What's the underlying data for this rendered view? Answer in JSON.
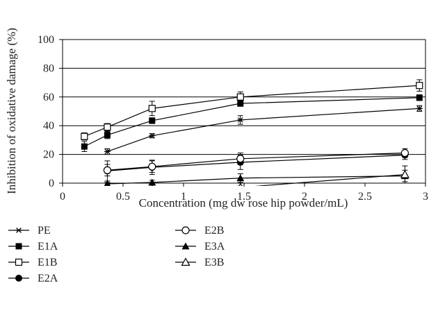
{
  "chart_data": {
    "type": "line",
    "xlabel": "Concentration (mg dw rose hip powder/mL)",
    "ylabel": "Inhibition of oxidative damage (%)",
    "xlim": [
      0,
      3
    ],
    "ylim": [
      0,
      100
    ],
    "x_ticks": [
      "0",
      "0.5",
      "1",
      "1.5",
      "2",
      "2.5",
      "3"
    ],
    "y_ticks": [
      "0",
      "20",
      "40",
      "60",
      "80",
      "100"
    ],
    "grid": "horizontal",
    "legend_position": "bottom",
    "series": [
      {
        "name": "PE",
        "marker": "star",
        "x": [
          0.37,
          0.74,
          1.47,
          2.95
        ],
        "y": [
          22,
          33,
          44,
          52
        ],
        "err": [
          2,
          1.5,
          3,
          2
        ]
      },
      {
        "name": "E1A",
        "marker": "square-filled",
        "x": [
          0.18,
          0.37,
          0.74,
          1.47,
          2.95
        ],
        "y": [
          25.5,
          33.5,
          43.5,
          55.5,
          59.5
        ],
        "err": [
          3.5,
          2.5,
          2,
          2,
          2
        ]
      },
      {
        "name": "E1B",
        "marker": "square-open",
        "x": [
          0.18,
          0.37,
          0.74,
          1.47,
          2.95
        ],
        "y": [
          32.5,
          39,
          52,
          60,
          68
        ],
        "err": [
          2.5,
          2.5,
          5,
          3.5,
          4
        ]
      },
      {
        "name": "E2A",
        "marker": "circle-filled",
        "x": [
          0.37,
          0.74,
          1.47,
          2.83
        ],
        "y": [
          8.5,
          11,
          14.5,
          19.5
        ],
        "err": [
          7,
          5,
          5,
          3
        ]
      },
      {
        "name": "E2B",
        "marker": "circle-open",
        "x": [
          0.37,
          0.74,
          1.47,
          2.83
        ],
        "y": [
          9,
          11.5,
          17,
          21
        ],
        "err": [
          4,
          4,
          4,
          3
        ]
      },
      {
        "name": "E3A",
        "marker": "triangle-filled",
        "x": [
          0.37,
          0.74,
          1.47,
          2.83
        ],
        "y": [
          -0.5,
          0.5,
          3.5,
          5
        ],
        "err": [
          1,
          1.5,
          3,
          4
        ]
      },
      {
        "name": "E3B",
        "marker": "triangle-open",
        "x": [
          0.74,
          1.47,
          2.83
        ],
        "y": [
          -4,
          -3,
          6
        ],
        "err": [
          1,
          1,
          6
        ]
      }
    ]
  }
}
